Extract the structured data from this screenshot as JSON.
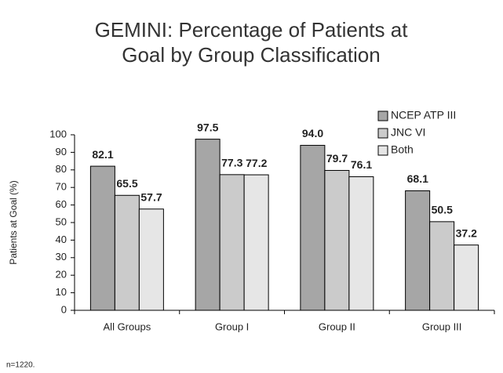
{
  "chart_data": {
    "type": "bar",
    "title": "GEMINI: Percentage of Patients at Goal by Group Classification",
    "y_label": "Patients at Goal (%)",
    "note": "n=1220.",
    "categories": [
      "All Groups",
      "Group I",
      "Group II",
      "Group III"
    ],
    "series": [
      {
        "name": "NCEP ATP III",
        "color": "#a6a6a6",
        "values": [
          82.1,
          97.5,
          94.0,
          68.1
        ],
        "value_labels": [
          "82.1",
          "97.5",
          "94.0",
          "68.1"
        ]
      },
      {
        "name": "JNC VI",
        "color": "#cbcbcb",
        "values": [
          65.5,
          77.3,
          79.7,
          50.5
        ],
        "value_labels": [
          "65.5",
          "77.3",
          "79.7",
          "50.5"
        ]
      },
      {
        "name": "Both",
        "color": "#e6e6e6",
        "values": [
          57.7,
          77.2,
          76.1,
          37.2
        ],
        "value_labels": [
          "57.7",
          "77.2",
          "76.1",
          "37.2"
        ]
      }
    ],
    "ylim": [
      0,
      100
    ],
    "yticks": [
      0,
      10,
      20,
      30,
      40,
      50,
      60,
      70,
      80,
      90,
      100
    ],
    "legend": "top-right",
    "grid": false
  }
}
